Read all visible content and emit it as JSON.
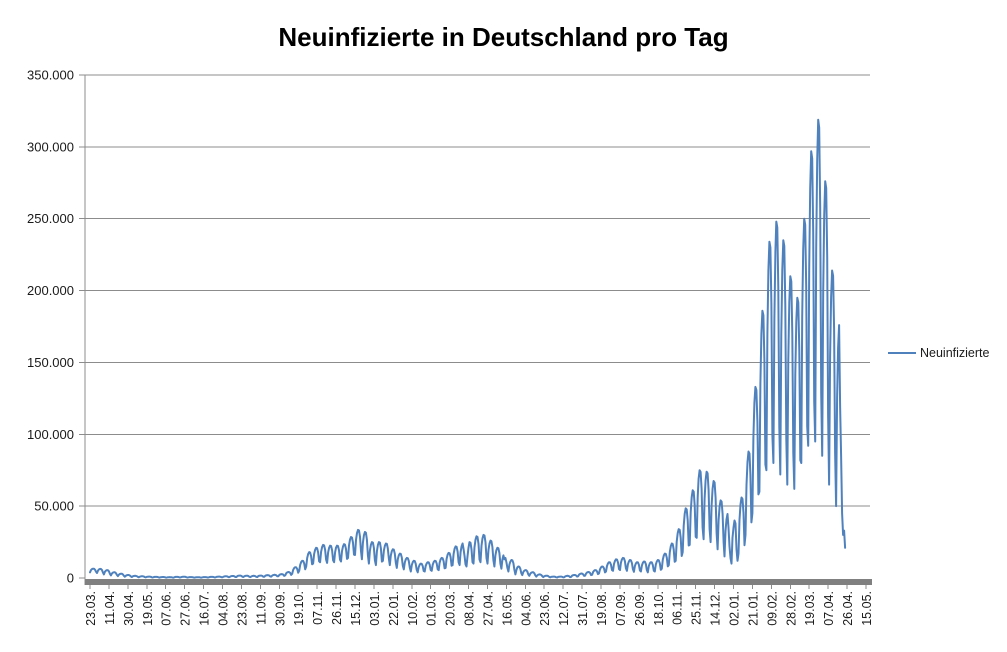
{
  "chart": {
    "title": "Neuinfizierte in Deutschland pro Tag",
    "legend_label": "Neuinfizierte"
  },
  "chart_data": {
    "type": "line",
    "title": "Neuinfizierte in Deutschland pro Tag",
    "xlabel": "",
    "ylabel": "",
    "ylim": [
      0,
      350000
    ],
    "y_tick_step": 50000,
    "y_tick_labels": [
      "0",
      "50.000",
      "100.000",
      "150.000",
      "200.000",
      "250.000",
      "300.000",
      "350.000"
    ],
    "grid": "horizontal-on",
    "legend_position": "right",
    "line_color": "#4F81BD",
    "grid_color": "#8C8C8C",
    "axis_color": "#8C8C8C",
    "x_axis_band_color": "#808080",
    "text_color": "#1a1a1a",
    "background_color": "#FFFFFF",
    "x_tick_labels": [
      "23.03.",
      "11.04.",
      "30.04.",
      "19.05.",
      "07.06.",
      "27.06.",
      "16.07.",
      "04.08.",
      "23.08.",
      "11.09.",
      "30.09.",
      "19.10.",
      "07.11.",
      "26.11.",
      "15.12.",
      "03.01.",
      "22.01.",
      "10.02.",
      "01.03.",
      "20.03.",
      "08.04.",
      "27.04.",
      "16.05.",
      "04.06.",
      "23.06.",
      "12.07.",
      "31.07.",
      "19.08.",
      "07.09.",
      "26.09.",
      "18.10.",
      "06.11.",
      "25.11.",
      "14.12.",
      "02.01.",
      "21.01.",
      "09.02.",
      "28.02.",
      "19.03.",
      "07.04.",
      "26.04.",
      "15.05."
    ],
    "x_label_interval": 19,
    "total_categories": 784,
    "series": [
      {
        "name": "Neuinfizierte",
        "values": [
          4000,
          5500,
          6190,
          6500,
          6440,
          5810,
          4380,
          3500,
          5180,
          5950,
          6300,
          6230,
          5530,
          3920,
          2500,
          4300,
          5130,
          5500,
          5430,
          4680,
          2950,
          1800,
          3120,
          3730,
          4000,
          3950,
          3400,
          2130,
          1300,
          2320,
          2790,
          3000,
          2960,
          2530,
          1560,
          900,
          1620,
          1950,
          2100,
          2070,
          1770,
          1080,
          700,
          1180,
          1400,
          1500,
          1480,
          1280,
          820,
          500,
          920,
          1110,
          1200,
          1180,
          1010,
          610,
          400,
          760,
          930,
          1000,
          990,
          840,
          490,
          350,
          620,
          740,
          800,
          790,
          680,
          420,
          300,
          540,
          650,
          700,
          690,
          590,
          360,
          250,
          460,
          560,
          600,
          590,
          500,
          300,
          300,
          600,
          740,
          800,
          790,
          660,
          380,
          400,
          700,
          840,
          900,
          890,
          760,
          480,
          300,
          510,
          610,
          650,
          640,
          550,
          350,
          250,
          430,
          510,
          550,
          540,
          470,
          300,
          300,
          510,
          610,
          650,
          640,
          550,
          350,
          350,
          620,
          740,
          800,
          790,
          680,
          420,
          450,
          780,
          930,
          1000,
          990,
          850,
          530,
          500,
          920,
          1110,
          1200,
          1180,
          1010,
          610,
          600,
          1080,
          1300,
          1400,
          1380,
          1180,
          720,
          700,
          1300,
          1580,
          1700,
          1680,
          1430,
          850,
          700,
          1240,
          1490,
          1600,
          1580,
          1350,
          840,
          600,
          1140,
          1390,
          1500,
          1480,
          1250,
          740,
          700,
          1300,
          1580,
          1700,
          1680,
          1430,
          850,
          900,
          1560,
          1860,
          2000,
          1970,
          1700,
          1070,
          1000,
          1720,
          2050,
          2200,
          2170,
          1870,
          1180,
          1200,
          2100,
          2510,
          2700,
          2660,
          2290,
          1430,
          1800,
          3240,
          3900,
          4200,
          4140,
          3540,
          2160,
          3000,
          5700,
          6940,
          7500,
          7390,
          6260,
          3680,
          5000,
          9200,
          11130,
          12000,
          11830,
          10080,
          6050,
          8000,
          14000,
          16750,
          18000,
          17750,
          15250,
          9500,
          10000,
          16600,
          19630,
          21000,
          20730,
          17980,
          11650,
          11000,
          18200,
          21500,
          23000,
          22700,
          19700,
          12800,
          10500,
          17700,
          21000,
          22500,
          22200,
          19200,
          12300,
          11000,
          17900,
          21060,
          22500,
          22210,
          19340,
          12730,
          11500,
          18700,
          22000,
          23500,
          23200,
          20200,
          13300,
          14000,
          22700,
          26690,
          28500,
          28140,
          24510,
          16180,
          16000,
          26500,
          31310,
          33500,
          33060,
          28690,
          18630,
          13000,
          24400,
          29630,
          32000,
          31530,
          26780,
          15850,
          10000,
          19000,
          23130,
          25000,
          24630,
          20880,
          12250,
          9000,
          18600,
          23000,
          25000,
          24600,
          20600,
          11400,
          12000,
          19200,
          22500,
          24000,
          23700,
          20700,
          13800,
          9000,
          15600,
          18630,
          20000,
          19730,
          16980,
          10650,
          7000,
          13000,
          15750,
          17000,
          16750,
          14250,
          8500,
          6000,
          10800,
          13000,
          14000,
          13800,
          11800,
          7200,
          4500,
          9000,
          11060,
          12000,
          11810,
          9940,
          5630,
          4000,
          7600,
          9250,
          10000,
          9850,
          8350,
          4900,
          4500,
          8400,
          10190,
          11000,
          10840,
          9210,
          5480,
          5000,
          9200,
          11130,
          12000,
          11830,
          10080,
          6050,
          5500,
          10600,
          12940,
          14000,
          13790,
          11660,
          6780,
          7000,
          13300,
          16190,
          17500,
          17240,
          14610,
          8580,
          9000,
          16800,
          20380,
          22000,
          21680,
          18430,
          10950,
          9000,
          18000,
          22130,
          24000,
          20000,
          15000,
          9500,
          8000,
          15000,
          21000,
          25000,
          24500,
          20000,
          11000,
          10000,
          21400,
          26630,
          29000,
          28530,
          23780,
          12850,
          11000,
          22400,
          27630,
          30000,
          29530,
          24780,
          13850,
          10000,
          19600,
          24000,
          26000,
          25600,
          21600,
          12400,
          8000,
          15800,
          19380,
          21000,
          20680,
          17430,
          9950,
          6500,
          12800,
          15700,
          13000,
          14000,
          11000,
          7000,
          4500,
          9300,
          11500,
          12500,
          12300,
          10300,
          5700,
          2500,
          5500,
          7310,
          8000,
          7860,
          6490,
          3330,
          2000,
          4100,
          5060,
          5500,
          5410,
          4540,
          2530,
          1500,
          3000,
          3690,
          4000,
          3940,
          3310,
          1880,
          1000,
          1900,
          2310,
          2500,
          2460,
          2090,
          1230,
          600,
          1200,
          1480,
          1600,
          1580,
          1330,
          750,
          400,
          760,
          930,
          1000,
          990,
          840,
          490,
          350,
          740,
          920,
          1000,
          980,
          820,
          450,
          500,
          1100,
          1380,
          1500,
          1480,
          1230,
          650,
          800,
          1580,
          1940,
          2100,
          2070,
          1740,
          1000,
          1200,
          2340,
          2860,
          3100,
          3050,
          2580,
          1490,
          1600,
          3160,
          3880,
          4200,
          4140,
          3490,
          1990,
          2200,
          4180,
          5090,
          5500,
          5420,
          4590,
          2700,
          3200,
          6080,
          7400,
          8000,
          7880,
          6680,
          3920,
          4500,
          8400,
          10190,
          11000,
          10840,
          9210,
          5480,
          5000,
          9800,
          12000,
          13000,
          12800,
          10800,
          6200,
          5500,
          10600,
          12940,
          14000,
          13790,
          11660,
          6780,
          5000,
          9500,
          11560,
          12500,
          12310,
          10440,
          6130,
          4300,
          8320,
          10160,
          11000,
          10830,
          9160,
          5310,
          4500,
          8700,
          10630,
          11500,
          11330,
          9580,
          5550,
          4000,
          8200,
          10130,
          11000,
          10830,
          9080,
          5050,
          4500,
          9300,
          11500,
          12500,
          12300,
          10300,
          5700,
          6500,
          12800,
          15690,
          17000,
          16740,
          14110,
          8080,
          9000,
          18000,
          22130,
          24000,
          23630,
          19880,
          11250,
          12000,
          25200,
          31250,
          34000,
          33450,
          27950,
          15300,
          18000,
          36300,
          44690,
          48500,
          47740,
          40110,
          22580,
          23000,
          45800,
          56250,
          61000,
          60050,
          50550,
          28700,
          28000,
          56200,
          69130,
          75000,
          73830,
          62080,
          35050,
          27000,
          55200,
          68130,
          74000,
          72830,
          61080,
          34050,
          25000,
          50500,
          62190,
          67500,
          66440,
          55810,
          31380,
          20000,
          40400,
          49750,
          54000,
          53150,
          44650,
          25100,
          15000,
          32700,
          40810,
          44500,
          35000,
          22000,
          14000,
          10000,
          28000,
          35000,
          40000,
          38000,
          20000,
          12000,
          17000,
          40400,
          51130,
          56000,
          55030,
          45280,
          22850,
          30000,
          64800,
          80750,
          88000,
          86550,
          72050,
          38700,
          45000,
          97800,
          122000,
          133000,
          130800,
          108800,
          58200,
          60000,
          135600,
          170250,
          186000,
          182850,
          151350,
          78900,
          75000,
          170400,
          214130,
          234000,
          230030,
          190280,
          98850,
          80000,
          180800,
          227000,
          248000,
          243800,
          201800,
          105200,
          72000,
          169800,
          214630,
          235000,
          230930,
          190180,
          96450,
          65000,
          152000,
          191880,
          210000,
          206380,
          170130,
          86750,
          62000,
          141800,
          178380,
          195000,
          191680,
          158430,
          81950,
          80000,
          182000,
          228750,
          250000,
          245750,
          203250,
          105500,
          92000,
          215000,
          271380,
          297000,
          291880,
          240630,
          122750,
          95000,
          229340,
          290910,
          318900,
          313300,
          257330,
          128590,
          85000,
          199600,
          252130,
          276000,
          271230,
          223480,
          113650,
          65000,
          154400,
          195380,
          214000,
          210280,
          173030,
          87350,
          50000,
          125600,
          160250,
          176000,
          120000,
          85000,
          45000,
          30000,
          33000,
          21000
        ]
      }
    ]
  }
}
